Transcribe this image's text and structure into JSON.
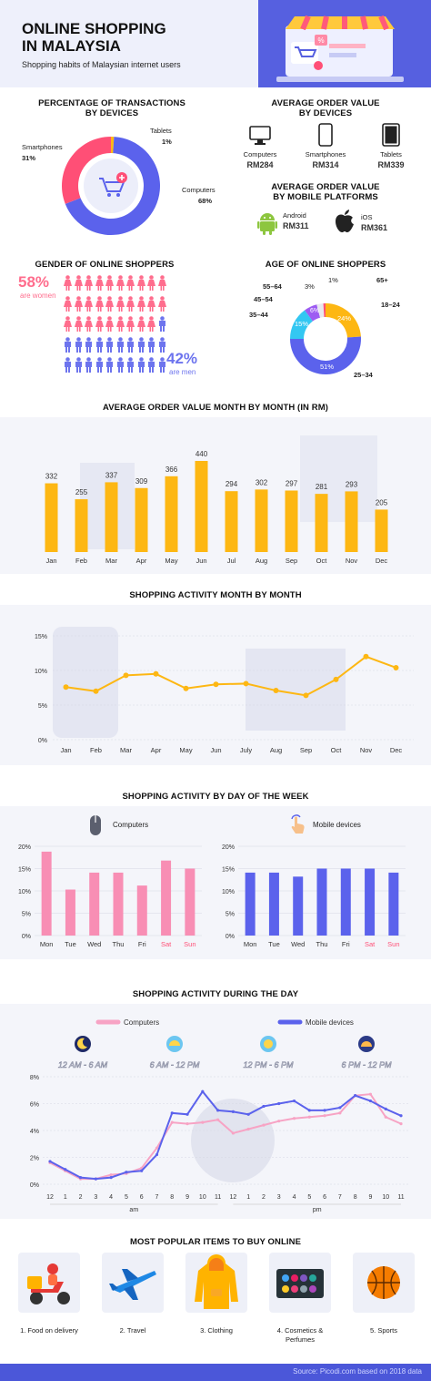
{
  "header": {
    "title_line1": "ONLINE SHOPPING",
    "title_line2": "IN MALAYSIA",
    "subtitle": "Shopping habits of Malaysian internet users"
  },
  "colors": {
    "yellow": "#fdb713",
    "blue": "#5b62ec",
    "pink": "#ff4f76",
    "cyan": "#33c7f2",
    "purple": "#9d5cf2",
    "bar_pink": "#f88eb4",
    "line_pink": "#f7a3c4",
    "dark": "#1e1e2e"
  },
  "devices": {
    "title_line1": "PERCENTAGE OF TRANSACTIONS",
    "title_line2": "BY DEVICES",
    "items": [
      {
        "label": "Smartphones",
        "value": "31%",
        "pct": 31
      },
      {
        "label": "Tablets",
        "value": "1%",
        "pct": 1
      },
      {
        "label": "Computers",
        "value": "68%",
        "pct": 68
      }
    ]
  },
  "aov_devices": {
    "title_line1": "AVERAGE ORDER VALUE",
    "title_line2": "BY DEVICES",
    "items": [
      {
        "label": "Computers",
        "value": "RM284"
      },
      {
        "label": "Smartphones",
        "value": "RM314"
      },
      {
        "label": "Tablets",
        "value": "RM339"
      }
    ]
  },
  "aov_platforms": {
    "title_line1": "AVERAGE ORDER VALUE",
    "title_line2": "BY MOBILE PLATFORMS",
    "items": [
      {
        "label": "Android",
        "value": "RM311"
      },
      {
        "label": "iOS",
        "value": "RM361"
      }
    ]
  },
  "gender": {
    "title": "GENDER OF ONLINE SHOPPERS",
    "women_pct": "58%",
    "women_label": "are women",
    "men_pct": "42%",
    "men_label": "are men",
    "women_share": 58
  },
  "age": {
    "title": "AGE OF ONLINE SHOPPERS",
    "groups": [
      {
        "label": "18–24",
        "value": "24%",
        "pct": 24
      },
      {
        "label": "25–34",
        "value": "51%",
        "pct": 51
      },
      {
        "label": "35–44",
        "value": "15%",
        "pct": 15
      },
      {
        "label": "45–54",
        "value": "6%",
        "pct": 6
      },
      {
        "label": "55–64",
        "value": "3%",
        "pct": 3
      },
      {
        "label": "65+",
        "value": "1%",
        "pct": 1
      }
    ]
  },
  "chart_data": [
    {
      "type": "bar",
      "title": "AVERAGE ORDER VALUE MONTH BY MONTH (IN RM)",
      "categories": [
        "Jan",
        "Feb",
        "Mar",
        "Apr",
        "May",
        "Jun",
        "Jul",
        "Aug",
        "Sep",
        "Oct",
        "Nov",
        "Dec"
      ],
      "values": [
        332,
        255,
        337,
        309,
        366,
        440,
        294,
        302,
        297,
        281,
        293,
        205
      ]
    },
    {
      "type": "line",
      "title": "SHOPPING ACTIVITY MONTH BY MONTH",
      "categories": [
        "Jan",
        "Feb",
        "Mar",
        "Apr",
        "May",
        "Jun",
        "July",
        "Aug",
        "Sep",
        "Oct",
        "Nov",
        "Dec"
      ],
      "yticks": [
        "15%",
        "10%",
        "5%",
        "0%"
      ],
      "ylim": [
        0,
        15
      ],
      "values": [
        7.6,
        7.0,
        9.3,
        9.5,
        7.4,
        8.0,
        8.1,
        7.1,
        6.4,
        8.7,
        12.0,
        10.4
      ]
    },
    {
      "type": "bar",
      "title": "SHOPPING ACTIVITY BY DAY OF THE WEEK",
      "panels": [
        {
          "name": "Computers",
          "categories": [
            "Mon",
            "Tue",
            "Wed",
            "Thu",
            "Fri",
            "Sat",
            "Sun"
          ],
          "values": [
            18.8,
            10.3,
            14.1,
            14.1,
            11.2,
            16.8,
            15.0
          ]
        },
        {
          "name": "Mobile devices",
          "categories": [
            "Mon",
            "Tue",
            "Wed",
            "Thu",
            "Fri",
            "Sat",
            "Sun"
          ],
          "values": [
            14.1,
            14.1,
            13.2,
            15.0,
            15.0,
            15.0,
            14.1
          ]
        }
      ],
      "yticks": [
        "20%",
        "15%",
        "10%",
        "5%",
        "0%"
      ],
      "ylim": [
        0,
        20
      ]
    },
    {
      "type": "line",
      "title": "SHOPPING ACTIVITY DURING THE DAY",
      "legend": [
        "Computers",
        "Mobile devices"
      ],
      "time_ranges": [
        "12 AM - 6 AM",
        "6 AM - 12 PM",
        "12 PM - 6 PM",
        "6 PM - 12 PM"
      ],
      "x": [
        "12",
        "1",
        "2",
        "3",
        "4",
        "5",
        "6",
        "7",
        "8",
        "9",
        "10",
        "11",
        "12",
        "1",
        "2",
        "3",
        "4",
        "5",
        "6",
        "7",
        "8",
        "9",
        "10",
        "11"
      ],
      "am_label": "am",
      "pm_label": "pm",
      "yticks": [
        "8%",
        "6%",
        "4%",
        "2%",
        "0%"
      ],
      "ylim": [
        0,
        8
      ],
      "series": [
        {
          "name": "Computers",
          "values": [
            1.6,
            1.0,
            0.4,
            0.4,
            0.7,
            0.8,
            1.2,
            2.7,
            4.6,
            4.5,
            4.6,
            4.8,
            3.8,
            4.1,
            4.4,
            4.7,
            4.9,
            5.0,
            5.1,
            5.3,
            6.6,
            6.7,
            5.0,
            4.5
          ]
        },
        {
          "name": "Mobile devices",
          "values": [
            1.7,
            1.1,
            0.5,
            0.4,
            0.5,
            0.9,
            1.0,
            2.2,
            5.3,
            5.2,
            6.9,
            5.5,
            5.4,
            5.2,
            5.8,
            6.0,
            6.2,
            5.5,
            5.5,
            5.7,
            6.6,
            6.2,
            5.6,
            5.1
          ]
        }
      ]
    }
  ],
  "popular": {
    "title": "MOST POPULAR ITEMS TO BUY ONLINE",
    "items": [
      {
        "label": "1. Food on delivery",
        "icon": "scooter-icon"
      },
      {
        "label": "2. Travel",
        "icon": "airplane-icon"
      },
      {
        "label": "3. Clothing",
        "icon": "hoodie-icon"
      },
      {
        "label": "4. Cosmetics & Perfumes",
        "icon": "palette-icon"
      },
      {
        "label": "5. Sports",
        "icon": "basketball-icon"
      }
    ]
  },
  "footer": "Source: Picodi.com based on 2018 data"
}
